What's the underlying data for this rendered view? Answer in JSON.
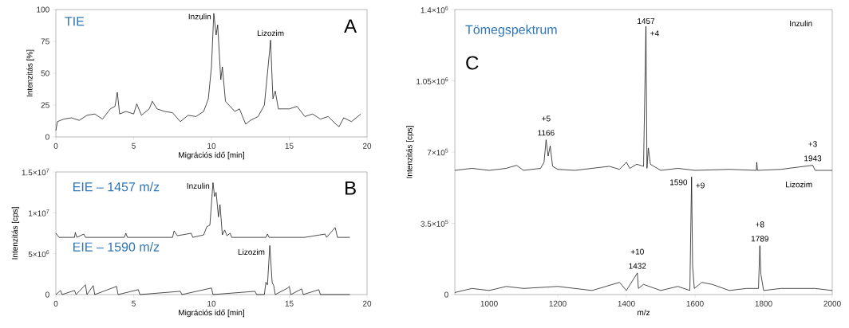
{
  "chart_data": [
    {
      "type": "line",
      "title": "TIE",
      "xlabel": "Migrációs idő [min]",
      "ylabel": "Intenzitás [%]",
      "xlim": [
        0,
        20
      ],
      "ylim": [
        0,
        100
      ],
      "xticks": [
        0,
        5,
        10,
        15,
        20
      ],
      "yticks": [
        0,
        25,
        50,
        75,
        100
      ],
      "series": [
        {
          "color": "#000000",
          "x": [
            0,
            0.1,
            0.5,
            1,
            1.5,
            2,
            2.5,
            3,
            3.5,
            3.8,
            3.95,
            4.1,
            4.5,
            5,
            5.2,
            5.5,
            6,
            6.2,
            6.5,
            7,
            7.5,
            8,
            8.5,
            9,
            9.5,
            9.8,
            10,
            10.15,
            10.3,
            10.4,
            10.6,
            10.7,
            10.9,
            11.2,
            11.5,
            11.8,
            12.2,
            12.5,
            13,
            13.4,
            13.6,
            13.8,
            13.95,
            14.1,
            14.3,
            15,
            15.5,
            16,
            16.5,
            17,
            17.5,
            18,
            18.2,
            18.5,
            19,
            19.6
          ],
          "values": [
            5,
            12,
            14,
            15,
            13,
            17,
            18,
            14,
            22,
            24,
            35,
            18,
            20,
            18,
            26,
            17,
            22,
            28,
            22,
            20,
            19,
            12,
            17,
            16,
            20,
            30,
            55,
            97,
            80,
            88,
            45,
            55,
            28,
            24,
            20,
            22,
            10,
            13,
            16,
            25,
            50,
            76,
            30,
            36,
            22,
            22,
            24,
            16,
            18,
            14,
            16,
            10,
            8,
            15,
            12,
            18
          ]
        }
      ],
      "annotations": [
        "A",
        {
          "text": "Inzulin",
          "x": 10.15,
          "y": 97
        },
        {
          "text": "Lizozim",
          "x": 13.8,
          "y": 76
        }
      ]
    },
    {
      "type": "line",
      "xlabel": "Migrációs idő [min]",
      "ylabel": "Intenzitás [cps]",
      "xlim": [
        0,
        20
      ],
      "ylim": [
        0,
        15000000
      ],
      "xticks": [
        0,
        5,
        10,
        15,
        20
      ],
      "yticks": [
        0,
        {
          "value": 5000000,
          "label": "5×10$^{6}$"
        },
        {
          "value": 10000000,
          "label": "1×10$^{7}$"
        },
        {
          "value": 15000000,
          "label": "1.5×10$^{7}$"
        }
      ],
      "series": [
        {
          "color": "#000000",
          "x": [
            0,
            0.2,
            1.2,
            1.25,
            1.35,
            1.8,
            1.9,
            4.4,
            4.5,
            4.6,
            7.5,
            7.6,
            7.8,
            8.7,
            8.8,
            9.5,
            9.7,
            9.9,
            10.1,
            10.2,
            10.3,
            10.45,
            10.55,
            10.7,
            10.85,
            11,
            11.2,
            11.3,
            13.5,
            13.6,
            13.7,
            16,
            17.3,
            17.4,
            17.95,
            18.1,
            18.9
          ],
          "values": [
            7500000,
            7000000,
            7000000,
            7600000,
            7000000,
            7400000,
            7000000,
            7000000,
            7500000,
            7000000,
            7000000,
            7800000,
            7200000,
            7500000,
            7000000,
            7300000,
            8300000,
            8500000,
            13700000,
            12000000,
            12500000,
            9500000,
            11000000,
            7300000,
            7900000,
            7200000,
            7500000,
            7000000,
            7000000,
            7400000,
            7000000,
            7000000,
            7400000,
            7000000,
            8200000,
            7000000,
            7000000
          ]
        },
        {
          "color": "#000000",
          "x": [
            0,
            0.3,
            0.4,
            1.2,
            1.3,
            1.9,
            2,
            2.4,
            2.5,
            3.9,
            4,
            5.3,
            5.4,
            8,
            8.1,
            10,
            10.1,
            12.8,
            12.9,
            13.4,
            13.5,
            13.6,
            13.75,
            13.9,
            14,
            14.1,
            14.5,
            14.9,
            15,
            15.1,
            15.8,
            15.9,
            16.9,
            17,
            18.9
          ],
          "values": [
            0,
            500000,
            0,
            500000,
            0,
            1200000,
            0,
            1100000,
            0,
            1000000,
            0,
            600000,
            0,
            400000,
            0,
            800000,
            0,
            400000,
            0,
            0,
            1500000,
            1200000,
            6000000,
            1500000,
            1100000,
            0,
            400000,
            800000,
            1000000,
            0,
            700000,
            0,
            600000,
            0,
            0
          ]
        }
      ],
      "annotations": [
        "B",
        {
          "text": "Inzulin",
          "x": 10.1,
          "y": 13700000
        },
        {
          "text": "Lizozim",
          "x": 13.75,
          "y": 6000000
        },
        "EIE – 1457 m/z",
        "EIE – 1590 m/z"
      ]
    },
    {
      "type": "line",
      "title": "Tömegspektrum",
      "xlabel": "m/z",
      "ylabel": "Intenzitás [cps]",
      "xlim": [
        900,
        2000
      ],
      "ylim": [
        0,
        1400000
      ],
      "xticks": [
        1000,
        1200,
        1400,
        1600,
        1800,
        2000
      ],
      "yticks": [
        0,
        {
          "value": 350000,
          "label": "3.5×10$^{5}$"
        },
        {
          "value": 700000,
          "label": "7×10$^{5}$"
        },
        {
          "value": 1050000,
          "label": "1.05×10$^{6}$"
        },
        {
          "value": 1400000,
          "label": "1.4×10$^{6}$"
        }
      ],
      "series": [
        {
          "color": "#000000",
          "x": [
            900,
            950,
            1000,
            1050,
            1080,
            1100,
            1150,
            1160,
            1166,
            1172,
            1178,
            1185,
            1200,
            1250,
            1300,
            1350,
            1380,
            1400,
            1410,
            1430,
            1450,
            1457,
            1460,
            1464,
            1470,
            1500,
            1550,
            1600,
            1700,
            1779,
            1780,
            1782,
            1850,
            1943,
            1950,
            2000
          ],
          "values": [
            610000,
            620000,
            610000,
            620000,
            635000,
            610000,
            620000,
            650000,
            760000,
            680000,
            730000,
            630000,
            615000,
            610000,
            620000,
            630000,
            615000,
            650000,
            620000,
            640000,
            630000,
            1317000,
            620000,
            720000,
            640000,
            610000,
            620000,
            610000,
            615000,
            610000,
            650000,
            610000,
            615000,
            635000,
            610000,
            610000
          ]
        },
        {
          "color": "#000000",
          "x": [
            900,
            950,
            1000,
            1050,
            1100,
            1200,
            1300,
            1380,
            1400,
            1432,
            1435,
            1450,
            1500,
            1550,
            1585,
            1590,
            1593,
            1598,
            1620,
            1650,
            1700,
            1750,
            1785,
            1789,
            1792,
            1800,
            1850,
            1950,
            2000
          ],
          "values": [
            10000,
            30000,
            20000,
            40000,
            30000,
            40000,
            20000,
            60000,
            20000,
            106000,
            30000,
            50000,
            20000,
            40000,
            20000,
            578000,
            140000,
            30000,
            60000,
            50000,
            20000,
            30000,
            30000,
            240000,
            100000,
            20000,
            30000,
            30000,
            20000
          ]
        }
      ],
      "annotations": [
        "C",
        {
          "text": "1457",
          "x": 1457,
          "y": 1317000
        },
        {
          "text": "+4",
          "x": 1457,
          "y": 1317000
        },
        {
          "text": "+5",
          "x": 1166,
          "y": 760000
        },
        {
          "text": "1166",
          "x": 1166,
          "y": 760000
        },
        {
          "text": "+3",
          "x": 1943,
          "y": 635000
        },
        {
          "text": "1943",
          "x": 1943,
          "y": 635000
        },
        {
          "text": "1590",
          "x": 1590,
          "y": 578000
        },
        {
          "text": "+9",
          "x": 1590,
          "y": 578000
        },
        {
          "text": "+10",
          "x": 1432,
          "y": 106000
        },
        {
          "text": "1432",
          "x": 1432,
          "y": 106000
        },
        {
          "text": "+8",
          "x": 1789,
          "y": 240000
        },
        {
          "text": "1789",
          "x": 1789,
          "y": 240000
        },
        "Inzulin",
        "Lizozim"
      ]
    }
  ]
}
